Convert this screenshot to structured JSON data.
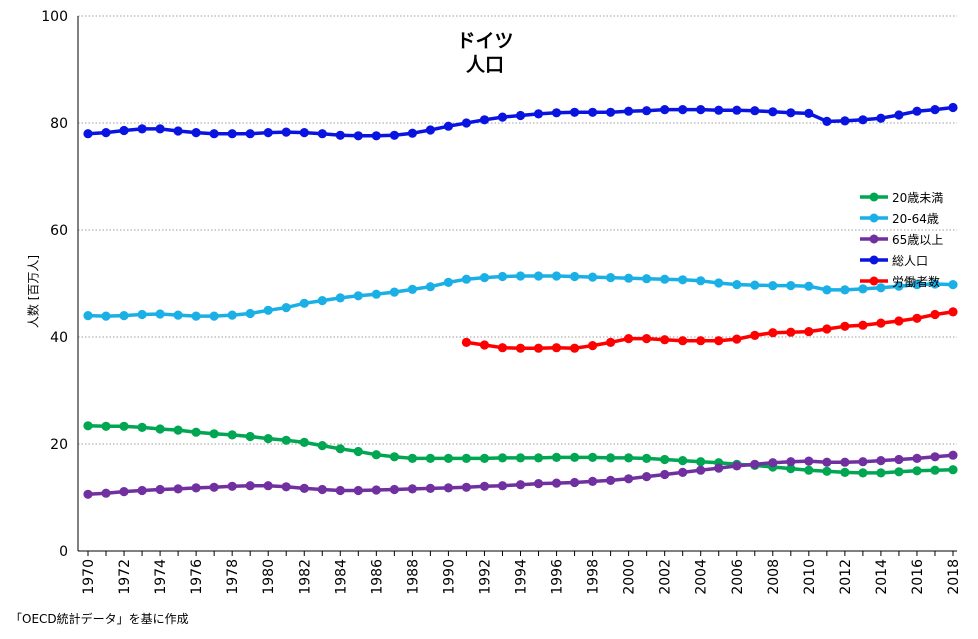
{
  "chart_data": {
    "type": "line",
    "title_line1": "ドイツ",
    "title_line2": "人口",
    "ylabel": "人数 [百万人]",
    "xlabel": "",
    "source_note": "「OECD統計データ」を基に作成",
    "ylim": [
      0,
      100
    ],
    "yticks": [
      0,
      20,
      40,
      60,
      80,
      100
    ],
    "x_range": [
      1970,
      2018
    ],
    "xticks": [
      1970,
      1972,
      1974,
      1976,
      1978,
      1980,
      1982,
      1984,
      1986,
      1988,
      1990,
      1992,
      1994,
      1996,
      1998,
      2000,
      2002,
      2004,
      2006,
      2008,
      2010,
      2012,
      2014,
      2016,
      2018
    ],
    "grid": "horizontal dotted",
    "legend_position": "right",
    "series": [
      {
        "name": "20歳未満",
        "color": "#00a651",
        "x": [
          1970,
          1971,
          1972,
          1973,
          1974,
          1975,
          1976,
          1977,
          1978,
          1979,
          1980,
          1981,
          1982,
          1983,
          1984,
          1985,
          1986,
          1987,
          1988,
          1989,
          1990,
          1991,
          1992,
          1993,
          1994,
          1995,
          1996,
          1997,
          1998,
          1999,
          2000,
          2001,
          2002,
          2003,
          2004,
          2005,
          2006,
          2007,
          2008,
          2009,
          2010,
          2011,
          2012,
          2013,
          2014,
          2015,
          2016,
          2017,
          2018
        ],
        "values": [
          23.4,
          23.3,
          23.3,
          23.1,
          22.8,
          22.6,
          22.2,
          21.9,
          21.7,
          21.4,
          21.0,
          20.7,
          20.3,
          19.7,
          19.1,
          18.6,
          18.0,
          17.6,
          17.3,
          17.3,
          17.3,
          17.3,
          17.3,
          17.4,
          17.4,
          17.4,
          17.5,
          17.5,
          17.5,
          17.4,
          17.4,
          17.3,
          17.1,
          16.9,
          16.7,
          16.5,
          16.2,
          16.0,
          15.7,
          15.4,
          15.1,
          14.9,
          14.7,
          14.6,
          14.6,
          14.8,
          15.0,
          15.1,
          15.2
        ]
      },
      {
        "name": "20-64歳",
        "color": "#1ab0e6",
        "x": [
          1970,
          1971,
          1972,
          1973,
          1974,
          1975,
          1976,
          1977,
          1978,
          1979,
          1980,
          1981,
          1982,
          1983,
          1984,
          1985,
          1986,
          1987,
          1988,
          1989,
          1990,
          1991,
          1992,
          1993,
          1994,
          1995,
          1996,
          1997,
          1998,
          1999,
          2000,
          2001,
          2002,
          2003,
          2004,
          2005,
          2006,
          2007,
          2008,
          2009,
          2010,
          2011,
          2012,
          2013,
          2014,
          2015,
          2016,
          2017,
          2018
        ],
        "values": [
          44.0,
          43.9,
          44.0,
          44.2,
          44.3,
          44.1,
          43.9,
          43.9,
          44.1,
          44.4,
          45.0,
          45.5,
          46.3,
          46.8,
          47.3,
          47.7,
          48.0,
          48.4,
          48.9,
          49.4,
          50.2,
          50.8,
          51.1,
          51.3,
          51.4,
          51.4,
          51.4,
          51.3,
          51.2,
          51.1,
          51.0,
          50.9,
          50.8,
          50.7,
          50.5,
          50.1,
          49.8,
          49.7,
          49.6,
          49.6,
          49.5,
          48.8,
          48.8,
          49.0,
          49.2,
          49.5,
          49.8,
          49.9,
          49.8
        ]
      },
      {
        "name": "65歳以上",
        "color": "#7030a0",
        "x": [
          1970,
          1971,
          1972,
          1973,
          1974,
          1975,
          1976,
          1977,
          1978,
          1979,
          1980,
          1981,
          1982,
          1983,
          1984,
          1985,
          1986,
          1987,
          1988,
          1989,
          1990,
          1991,
          1992,
          1993,
          1994,
          1995,
          1996,
          1997,
          1998,
          1999,
          2000,
          2001,
          2002,
          2003,
          2004,
          2005,
          2006,
          2007,
          2008,
          2009,
          2010,
          2011,
          2012,
          2013,
          2014,
          2015,
          2016,
          2017,
          2018
        ],
        "values": [
          10.6,
          10.8,
          11.1,
          11.3,
          11.5,
          11.6,
          11.8,
          11.9,
          12.1,
          12.2,
          12.2,
          12.0,
          11.7,
          11.5,
          11.3,
          11.3,
          11.4,
          11.5,
          11.6,
          11.7,
          11.8,
          11.9,
          12.1,
          12.2,
          12.4,
          12.6,
          12.7,
          12.8,
          13.0,
          13.2,
          13.5,
          13.9,
          14.3,
          14.7,
          15.1,
          15.5,
          15.9,
          16.2,
          16.5,
          16.7,
          16.8,
          16.6,
          16.6,
          16.7,
          16.9,
          17.1,
          17.3,
          17.6,
          17.9
        ]
      },
      {
        "name": "総人口",
        "color": "#0a14e0",
        "x": [
          1970,
          1971,
          1972,
          1973,
          1974,
          1975,
          1976,
          1977,
          1978,
          1979,
          1980,
          1981,
          1982,
          1983,
          1984,
          1985,
          1986,
          1987,
          1988,
          1989,
          1990,
          1991,
          1992,
          1993,
          1994,
          1995,
          1996,
          1997,
          1998,
          1999,
          2000,
          2001,
          2002,
          2003,
          2004,
          2005,
          2006,
          2007,
          2008,
          2009,
          2010,
          2011,
          2012,
          2013,
          2014,
          2015,
          2016,
          2017,
          2018
        ],
        "values": [
          78.0,
          78.2,
          78.6,
          78.9,
          78.9,
          78.5,
          78.2,
          78.0,
          78.0,
          78.0,
          78.2,
          78.3,
          78.2,
          78.0,
          77.7,
          77.6,
          77.6,
          77.7,
          78.1,
          78.7,
          79.4,
          80.0,
          80.6,
          81.1,
          81.4,
          81.7,
          81.9,
          82.0,
          82.0,
          82.0,
          82.2,
          82.3,
          82.5,
          82.5,
          82.5,
          82.4,
          82.4,
          82.3,
          82.1,
          81.9,
          81.8,
          80.3,
          80.4,
          80.6,
          80.9,
          81.5,
          82.2,
          82.5,
          82.9
        ]
      },
      {
        "name": "労働者数",
        "color": "#ff0000",
        "x": [
          1991,
          1992,
          1993,
          1994,
          1995,
          1996,
          1997,
          1998,
          1999,
          2000,
          2001,
          2002,
          2003,
          2004,
          2005,
          2006,
          2007,
          2008,
          2009,
          2010,
          2011,
          2012,
          2013,
          2014,
          2015,
          2016,
          2017,
          2018
        ],
        "values": [
          39.0,
          38.5,
          38.0,
          37.9,
          37.9,
          38.0,
          37.9,
          38.4,
          39.0,
          39.7,
          39.7,
          39.5,
          39.3,
          39.3,
          39.3,
          39.6,
          40.3,
          40.8,
          40.9,
          41.0,
          41.5,
          42.0,
          42.2,
          42.6,
          43.0,
          43.5,
          44.2,
          44.7
        ]
      }
    ]
  }
}
